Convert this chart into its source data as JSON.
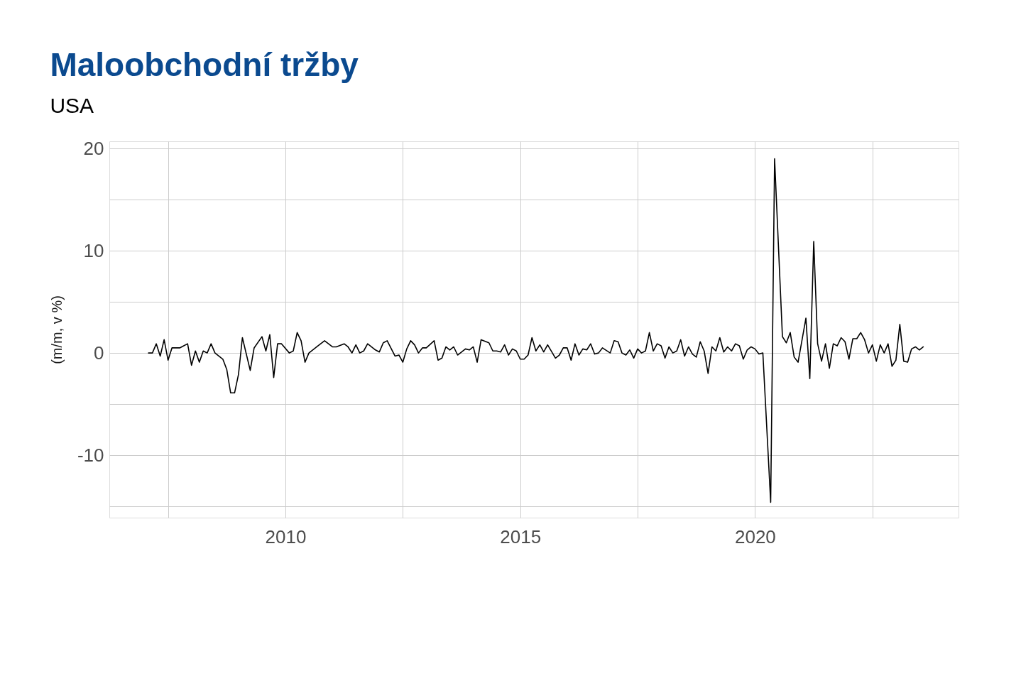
{
  "chart_data": {
    "type": "line",
    "title": "Maloobchodní tržby",
    "subtitle": "USA",
    "ylabel": "(m/m, v %)",
    "x": [
      "2007-02",
      "2007-03",
      "2007-04",
      "2007-05",
      "2007-06",
      "2007-07",
      "2007-08",
      "2007-10",
      "2007-12",
      "2008-01",
      "2008-02",
      "2008-03",
      "2008-04",
      "2008-05",
      "2008-06",
      "2008-07",
      "2008-09",
      "2008-10",
      "2008-11",
      "2008-12",
      "2009-01",
      "2009-02",
      "2009-04",
      "2009-05",
      "2009-07",
      "2009-08",
      "2009-09",
      "2009-10",
      "2009-11",
      "2009-12",
      "2010-02",
      "2010-03",
      "2010-04",
      "2010-05",
      "2010-06",
      "2010-07",
      "2010-09",
      "2010-11",
      "2011-01",
      "2011-02",
      "2011-04",
      "2011-05",
      "2011-06",
      "2011-07",
      "2011-08",
      "2011-09",
      "2011-10",
      "2011-12",
      "2012-01",
      "2012-02",
      "2012-03",
      "2012-05",
      "2012-06",
      "2012-07",
      "2012-08",
      "2012-09",
      "2012-10",
      "2012-11",
      "2012-12",
      "2013-01",
      "2013-03",
      "2013-04",
      "2013-05",
      "2013-06",
      "2013-07",
      "2013-08",
      "2013-09",
      "2013-11",
      "2013-12",
      "2014-01",
      "2014-02",
      "2014-03",
      "2014-05",
      "2014-06",
      "2014-07",
      "2014-08",
      "2014-09",
      "2014-10",
      "2014-11",
      "2014-12",
      "2015-01",
      "2015-02",
      "2015-03",
      "2015-04",
      "2015-05",
      "2015-06",
      "2015-07",
      "2015-08",
      "2015-10",
      "2015-11",
      "2015-12",
      "2016-01",
      "2016-02",
      "2016-03",
      "2016-04",
      "2016-05",
      "2016-06",
      "2016-07",
      "2016-08",
      "2016-09",
      "2016-10",
      "2016-12",
      "2017-01",
      "2017-02",
      "2017-03",
      "2017-04",
      "2017-05",
      "2017-06",
      "2017-07",
      "2017-08",
      "2017-09",
      "2017-10",
      "2017-11",
      "2017-12",
      "2018-01",
      "2018-02",
      "2018-03",
      "2018-04",
      "2018-05",
      "2018-06",
      "2018-07",
      "2018-08",
      "2018-09",
      "2018-10",
      "2018-11",
      "2018-12",
      "2019-01",
      "2019-02",
      "2019-03",
      "2019-04",
      "2019-05",
      "2019-06",
      "2019-07",
      "2019-08",
      "2019-09",
      "2019-10",
      "2019-11",
      "2019-12",
      "2020-01",
      "2020-02",
      "2020-03",
      "2020-05",
      "2020-06",
      "2020-08",
      "2020-09",
      "2020-10",
      "2020-11",
      "2020-12",
      "2021-02",
      "2021-03",
      "2021-04",
      "2021-05",
      "2021-06",
      "2021-07",
      "2021-08",
      "2021-09",
      "2021-10",
      "2021-11",
      "2021-12",
      "2022-01",
      "2022-02",
      "2022-03",
      "2022-04",
      "2022-05",
      "2022-06",
      "2022-07",
      "2022-08",
      "2022-09",
      "2022-10",
      "2022-11",
      "2022-12",
      "2023-01",
      "2023-02",
      "2023-03",
      "2023-04",
      "2023-05",
      "2023-06",
      "2023-07",
      "2023-08"
    ],
    "series": [
      {
        "color": "#000000",
        "values": [
          0,
          0,
          0.9,
          -0.3,
          1.3,
          -0.7,
          0.5,
          0.5,
          0.9,
          -1.2,
          0.2,
          -0.9,
          0.2,
          0,
          0.9,
          0,
          -0.6,
          -1.6,
          -3.9,
          -3.9,
          -2.1,
          1.5,
          -1.7,
          0.5,
          1.6,
          0.2,
          1.8,
          -2.4,
          0.9,
          0.9,
          0,
          0.2,
          2.0,
          1.2,
          -0.9,
          0,
          0.6,
          1.2,
          0.6,
          0.6,
          0.9,
          0.6,
          0,
          0.8,
          0,
          0.2,
          0.9,
          0.3,
          0.1,
          1.0,
          1.2,
          -0.3,
          -0.2,
          -0.9,
          0.4,
          1.2,
          0.8,
          0,
          0.5,
          0.5,
          1.2,
          -0.7,
          -0.5,
          0.6,
          0.3,
          0.6,
          -0.2,
          0.4,
          0.3,
          0.6,
          -0.9,
          1.3,
          1.0,
          0.2,
          0.2,
          0.1,
          0.8,
          -0.2,
          0.4,
          0.2,
          -0.6,
          -0.6,
          -0.2,
          1.5,
          0.2,
          0.8,
          0.1,
          0.8,
          -0.5,
          -0.2,
          0.5,
          0.5,
          -0.7,
          0.9,
          -0.2,
          0.4,
          0.3,
          0.9,
          -0.1,
          0,
          0.5,
          0,
          1.2,
          1.1,
          0,
          -0.2,
          0.3,
          -0.5,
          0.4,
          0,
          0.2,
          2.0,
          0.2,
          0.9,
          0.7,
          -0.5,
          0.6,
          0,
          0.2,
          1.3,
          -0.3,
          0.6,
          -0.1,
          -0.4,
          1.1,
          0.2,
          -2.0,
          0.6,
          0.2,
          1.5,
          0.1,
          0.6,
          0.2,
          0.9,
          0.7,
          -0.6,
          0.3,
          0.6,
          0.4,
          -0.1,
          0,
          -14.6,
          19.0,
          1.6,
          1.0,
          2.0,
          -0.4,
          -0.9,
          3.4,
          -2.5,
          10.9,
          0.9,
          -0.8,
          0.9,
          -1.5,
          0.9,
          0.7,
          1.5,
          1.1,
          -0.6,
          1.4,
          1.4,
          2.0,
          1.3,
          0,
          0.8,
          -0.8,
          0.8,
          0,
          0.9,
          -1.3,
          -0.7,
          2.8,
          -0.8,
          -0.9,
          0.4,
          0.6,
          0.3,
          0.6
        ]
      }
    ],
    "xlim": [
      "2006-04",
      "2024-05"
    ],
    "xticks": [
      {
        "value": "2007-07",
        "label": null
      },
      "2010",
      {
        "value": "2012-07",
        "label": null
      },
      "2015",
      {
        "value": "2017-07",
        "label": null
      },
      "2020",
      {
        "value": "2022-07",
        "label": null
      }
    ],
    "ylim": [
      -16.1,
      20.7
    ],
    "yticks": [
      {
        "value": -15,
        "label": null
      },
      -10,
      {
        "value": -5,
        "label": null
      },
      0,
      {
        "value": 5,
        "label": null
      },
      10,
      {
        "value": 15,
        "label": null
      },
      20
    ],
    "grid": true
  }
}
